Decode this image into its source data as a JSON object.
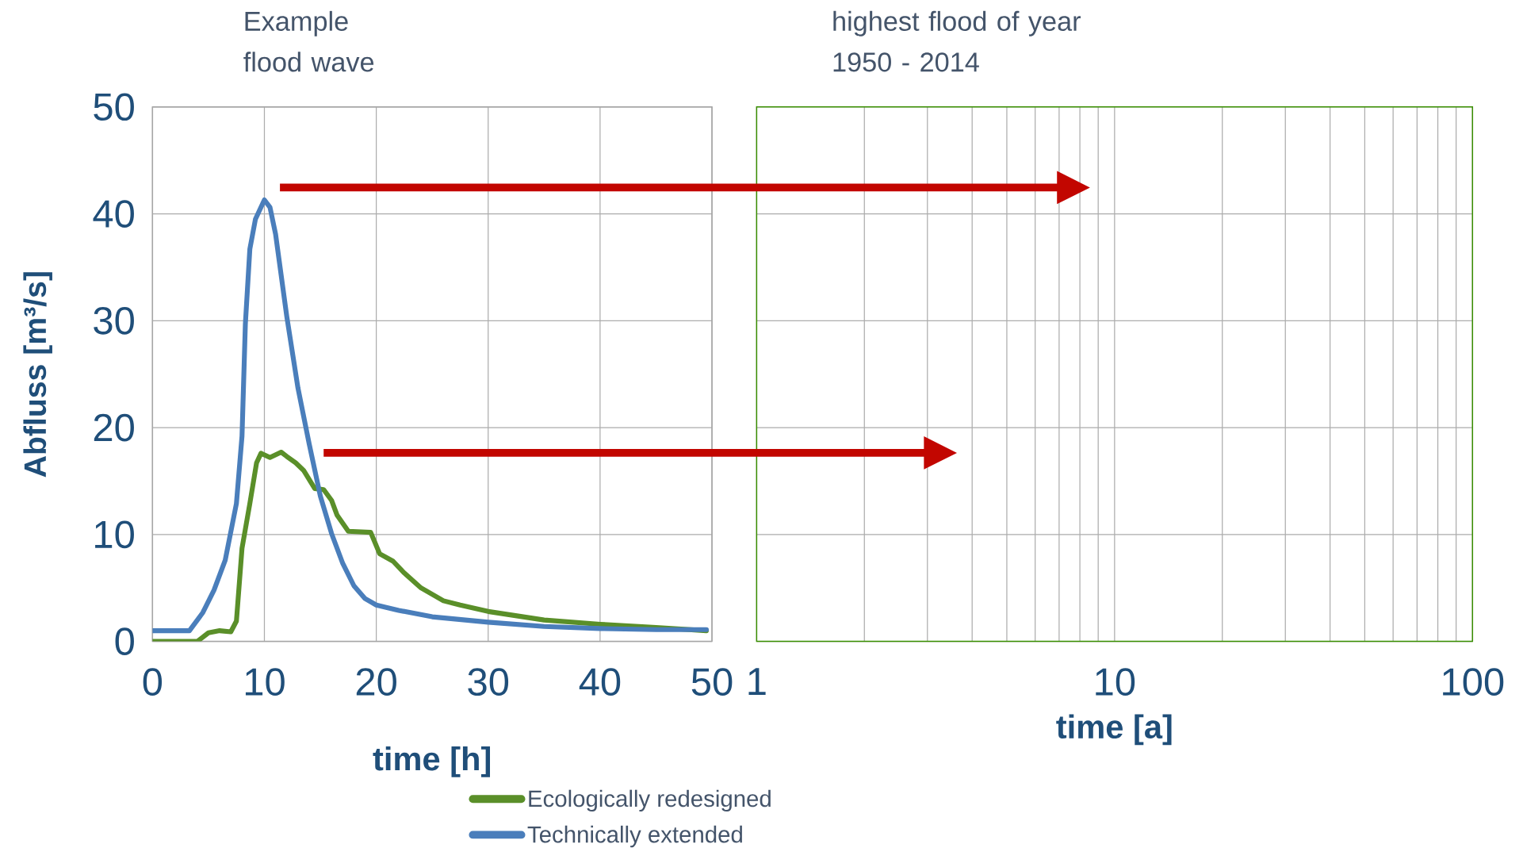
{
  "chart_data": [
    {
      "type": "line",
      "title": "Example flood wave",
      "xlabel": "time [h]",
      "ylabel": "Abfluss [m³/s]",
      "xlim": [
        0,
        50
      ],
      "ylim": [
        0,
        50
      ],
      "xticks": [
        0,
        10,
        20,
        30,
        40,
        50
      ],
      "yticks": [
        0,
        10,
        20,
        30,
        40,
        50
      ],
      "grid": true,
      "legend": "bottom",
      "series": [
        {
          "name": "Ecologically redesigned",
          "color": "#5a8f29",
          "x": [
            0,
            4,
            5,
            6,
            7,
            7.5,
            8,
            8.7,
            9.3,
            9.7,
            10.5,
            11.5,
            12,
            12.8,
            13.5,
            14.5,
            15.3,
            16,
            16.5,
            17.5,
            19.5,
            20.3,
            21.5,
            22.5,
            24,
            26,
            27.5,
            30,
            35,
            40,
            45,
            49.5
          ],
          "values": [
            0,
            0,
            0.8,
            1.0,
            0.9,
            1.9,
            8.7,
            12.9,
            16.7,
            17.6,
            17.2,
            17.7,
            17.3,
            16.7,
            16.0,
            14.3,
            14.2,
            13.2,
            11.8,
            10.3,
            10.2,
            8.2,
            7.5,
            6.4,
            5.0,
            3.8,
            3.4,
            2.8,
            2.0,
            1.6,
            1.3,
            1.0
          ]
        },
        {
          "name": "Technically extended",
          "color": "#4a7ebb",
          "x": [
            0,
            3.3,
            4.5,
            5.5,
            6.5,
            7.5,
            8,
            8.3,
            8.7,
            9.2,
            10,
            10.5,
            11,
            12,
            13,
            14,
            15,
            16,
            17,
            18,
            19,
            20,
            22,
            25,
            30,
            35,
            40,
            45,
            49.5
          ],
          "values": [
            1.0,
            1.0,
            2.7,
            4.8,
            7.6,
            12.9,
            19.2,
            29.7,
            36.7,
            39.5,
            41.3,
            40.6,
            38.1,
            30.4,
            23.7,
            18.5,
            13.6,
            10.1,
            7.3,
            5.2,
            4.0,
            3.4,
            2.9,
            2.3,
            1.8,
            1.4,
            1.2,
            1.1,
            1.1
          ]
        }
      ]
    },
    {
      "type": "line",
      "title": "highest flood of year 1950 - 2014",
      "xlabel": "time [a]",
      "log": "x",
      "xlim": [
        1,
        100
      ],
      "ylim": [
        0,
        50
      ],
      "grid": true,
      "tick_labels": "x",
      "xticks": [
        1,
        {
          "value": 2,
          "label": null
        },
        {
          "value": 3,
          "label": null
        },
        {
          "value": 4,
          "label": null
        },
        {
          "value": 5,
          "label": null
        },
        {
          "value": 6,
          "label": null
        },
        {
          "value": 7,
          "label": null
        },
        {
          "value": 8,
          "label": null
        },
        {
          "value": 9,
          "label": null
        },
        10,
        {
          "value": 20,
          "label": null
        },
        {
          "value": 30,
          "label": null
        },
        {
          "value": 40,
          "label": null
        },
        {
          "value": 50,
          "label": null
        },
        {
          "value": 60,
          "label": null
        },
        {
          "value": 70,
          "label": null
        },
        {
          "value": 80,
          "label": null
        },
        {
          "value": 90,
          "label": null
        },
        100
      ],
      "yticks": [
        0,
        10,
        20,
        30,
        40,
        50
      ]
    }
  ]
}
